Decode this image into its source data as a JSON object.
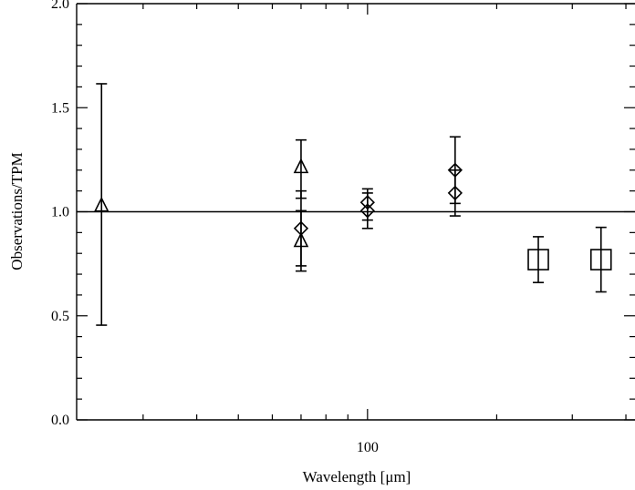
{
  "chart_data": {
    "type": "scatter",
    "title": "",
    "xlabel": "Wavelength [μm]",
    "ylabel": "Observations/TPM",
    "xscale": "log",
    "xlim": [
      21,
      420
    ],
    "ylim": [
      0.0,
      2.0
    ],
    "x_tick_labels": [
      {
        "value": 100,
        "label": "100"
      }
    ],
    "y_tick_labels": [
      {
        "value": 0.0,
        "label": "0.0"
      },
      {
        "value": 0.5,
        "label": "0.5"
      },
      {
        "value": 1.0,
        "label": "1.0"
      },
      {
        "value": 1.5,
        "label": "1.5"
      },
      {
        "value": 2.0,
        "label": "2.0"
      }
    ],
    "reference_line_y": 1.0,
    "series": [
      {
        "marker": "triangle",
        "points": [
          {
            "x": 24,
            "y": 1.03,
            "ylow": 0.455,
            "yhigh": 1.615
          },
          {
            "x": 70,
            "y": 1.215,
            "ylow": 1.065,
            "yhigh": 1.345
          },
          {
            "x": 70,
            "y": 0.86,
            "ylow": 0.715,
            "yhigh": 1.005
          }
        ]
      },
      {
        "marker": "diamond",
        "points": [
          {
            "x": 70,
            "y": 0.92,
            "ylow": 0.74,
            "yhigh": 1.1
          },
          {
            "x": 100,
            "y": 1.045,
            "ylow": 0.96,
            "yhigh": 1.11
          },
          {
            "x": 100,
            "y": 1.005,
            "ylow": 0.92,
            "yhigh": 1.09
          },
          {
            "x": 160,
            "y": 1.2,
            "ylow": 1.04,
            "yhigh": 1.36
          },
          {
            "x": 160,
            "y": 1.09,
            "ylow": 0.98,
            "yhigh": 1.2
          }
        ]
      },
      {
        "marker": "square",
        "points": [
          {
            "x": 250,
            "y": 0.77,
            "ylow": 0.66,
            "yhigh": 0.88
          },
          {
            "x": 350,
            "y": 0.77,
            "ylow": 0.615,
            "yhigh": 0.925
          }
        ]
      }
    ]
  }
}
